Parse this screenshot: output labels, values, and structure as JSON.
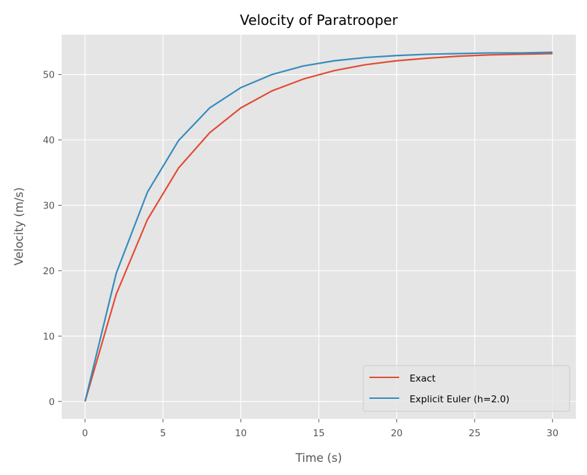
{
  "chart_data": {
    "type": "line",
    "title": "Velocity of Paratrooper",
    "xlabel": "Time (s)",
    "ylabel": "Velocity (m/s)",
    "xlim": [
      -1.5,
      31.5
    ],
    "ylim": [
      -2.67,
      56.1
    ],
    "xticks": [
      0,
      5,
      10,
      15,
      20,
      25,
      30
    ],
    "yticks": [
      0,
      10,
      20,
      30,
      40,
      50
    ],
    "grid": true,
    "legend_position": "lower-right",
    "series": [
      {
        "name": "Exact",
        "color": "#E24A33",
        "x": [
          0,
          2,
          4,
          6,
          8,
          10,
          12,
          14,
          16,
          18,
          20,
          22,
          24,
          26,
          28,
          30
        ],
        "y": [
          0,
          16.4,
          27.8,
          35.7,
          41.1,
          44.9,
          47.5,
          49.3,
          50.6,
          51.5,
          52.1,
          52.5,
          52.8,
          53.0,
          53.1,
          53.2
        ]
      },
      {
        "name": "Explicit Euler (h=2.0)",
        "color": "#348ABD",
        "x": [
          0,
          2,
          4,
          6,
          8,
          10,
          12,
          14,
          16,
          18,
          20,
          22,
          24,
          26,
          28,
          30
        ],
        "y": [
          0,
          19.6,
          32.0,
          39.9,
          44.9,
          48.0,
          50.0,
          51.3,
          52.1,
          52.6,
          52.9,
          53.1,
          53.2,
          53.3,
          53.3,
          53.4
        ]
      }
    ]
  }
}
